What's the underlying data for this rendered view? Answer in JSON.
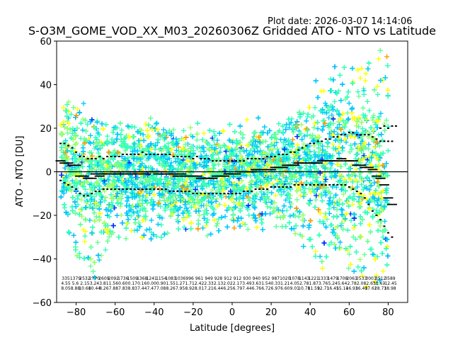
{
  "header": {
    "plot_date": "Plot date: 2026-03-07 14:14:06"
  },
  "chart_data": {
    "type": "scatter",
    "title": "S-O3M_GOME_VOD_XX_M03_20260306Z Gridded ATO - NTO vs Latitude",
    "xlabel": "Latitude [degrees]",
    "ylabel": "ATO - NTO [DU]",
    "xlim": [
      -90,
      90
    ],
    "ylim": [
      -60,
      60
    ],
    "xticks": [
      -80,
      -60,
      -40,
      -20,
      0,
      20,
      40,
      60,
      80
    ],
    "yticks": [
      -60,
      -40,
      -20,
      0,
      20,
      40,
      60
    ],
    "marker": "+",
    "point_colors": [
      "#00ccff",
      "#33ffbb",
      "#66ff99",
      "#ffff00",
      "#99ff66",
      "#0033ff",
      "#ff9900",
      "#00bbff"
    ],
    "zero_line": 0,
    "envelope": {
      "lat": [
        -88,
        -80,
        -70,
        -60,
        -50,
        -40,
        -30,
        -20,
        -10,
        0,
        10,
        20,
        30,
        40,
        50,
        60,
        70,
        78
      ],
      "upper": [
        30,
        32,
        22,
        24,
        22,
        20,
        22,
        20,
        20,
        18,
        18,
        20,
        26,
        36,
        40,
        52,
        56,
        56
      ],
      "lower": [
        -22,
        -38,
        -50,
        -30,
        -32,
        -32,
        -28,
        -28,
        -30,
        -26,
        -28,
        -28,
        -30,
        -38,
        -50,
        -45,
        -52,
        -52
      ]
    },
    "series": [
      {
        "name": "mean",
        "style": "black-thick-dash",
        "lat": [
          -88,
          -86,
          -84,
          -82,
          -80,
          -78,
          -76,
          -74,
          -72,
          -70,
          -68,
          -66,
          -64,
          -62,
          -60,
          -58,
          -56,
          -54,
          -52,
          -50,
          -48,
          -46,
          -44,
          -42,
          -40,
          -38,
          -36,
          -34,
          -32,
          -30,
          -28,
          -26,
          -24,
          -22,
          -20,
          -18,
          -16,
          -14,
          -12,
          -10,
          -8,
          -6,
          -4,
          -2,
          0,
          2,
          4,
          6,
          8,
          10,
          12,
          14,
          16,
          18,
          20,
          22,
          24,
          26,
          28,
          30,
          32,
          34,
          36,
          38,
          40,
          42,
          44,
          46,
          48,
          50,
          52,
          54,
          56,
          58,
          60,
          62,
          64,
          66,
          68,
          70,
          72,
          74,
          76,
          78,
          80,
          82
        ],
        "values": [
          5,
          4,
          4,
          3,
          3,
          -2,
          -2,
          -3,
          -3,
          -1,
          -2,
          -1,
          -1,
          -1,
          0,
          -1,
          -1,
          0,
          -1,
          0,
          -1,
          0,
          -1,
          0,
          0,
          -1,
          0,
          -1,
          -1,
          -1,
          -2,
          -1,
          -2,
          -2,
          -2,
          -2,
          -3,
          -3,
          -3,
          -3,
          -2,
          -2,
          -2,
          -1,
          -1,
          -1,
          0,
          0,
          0,
          0,
          1,
          1,
          1,
          1,
          1,
          2,
          2,
          2,
          3,
          3,
          3,
          4,
          4,
          4,
          4,
          4,
          4,
          5,
          5,
          5,
          5,
          5,
          6,
          5,
          5,
          5,
          3,
          3,
          2,
          2,
          1,
          -2,
          -3,
          -6,
          -12,
          -15
        ]
      },
      {
        "name": "upper",
        "style": "black-dotted",
        "lat": [
          -88,
          -86,
          -84,
          -82,
          -80,
          -78,
          -76,
          -74,
          -72,
          -70,
          -68,
          -66,
          -64,
          -62,
          -60,
          -58,
          -56,
          -54,
          -52,
          -50,
          -48,
          -46,
          -44,
          -42,
          -40,
          -38,
          -36,
          -34,
          -32,
          -30,
          -28,
          -26,
          -24,
          -22,
          -20,
          -18,
          -16,
          -14,
          -12,
          -10,
          -8,
          -6,
          -4,
          -2,
          0,
          2,
          4,
          6,
          8,
          10,
          12,
          14,
          16,
          18,
          20,
          22,
          24,
          26,
          28,
          30,
          32,
          34,
          36,
          38,
          40,
          42,
          44,
          46,
          48,
          50,
          52,
          54,
          56,
          58,
          60,
          62,
          64,
          66,
          68,
          70,
          72,
          74,
          76,
          78,
          80,
          82
        ],
        "values": [
          13,
          13,
          12,
          11,
          9,
          7,
          7,
          6,
          6,
          6,
          7,
          6,
          7,
          7,
          7,
          7,
          8,
          8,
          8,
          8,
          8,
          9,
          8,
          8,
          8,
          8,
          8,
          8,
          8,
          7,
          7,
          7,
          7,
          7,
          6,
          7,
          6,
          6,
          6,
          5,
          5,
          5,
          5,
          5,
          5,
          5,
          5,
          5,
          6,
          6,
          6,
          6,
          6,
          7,
          7,
          7,
          8,
          8,
          8,
          9,
          9,
          10,
          11,
          12,
          13,
          13,
          14,
          14,
          15,
          15,
          16,
          16,
          17,
          17,
          18,
          18,
          17,
          17,
          17,
          17,
          16,
          15,
          14,
          14,
          14,
          14
        ]
      },
      {
        "name": "lower",
        "style": "black-dotted",
        "lat": [
          -88,
          -86,
          -84,
          -82,
          -80,
          -78,
          -76,
          -74,
          -72,
          -70,
          -68,
          -66,
          -64,
          -62,
          -60,
          -58,
          -56,
          -54,
          -52,
          -50,
          -48,
          -46,
          -44,
          -42,
          -40,
          -38,
          -36,
          -34,
          -32,
          -30,
          -28,
          -26,
          -24,
          -22,
          -20,
          -18,
          -16,
          -14,
          -12,
          -10,
          -8,
          -6,
          -4,
          -2,
          0,
          2,
          4,
          6,
          8,
          10,
          12,
          14,
          16,
          18,
          20,
          22,
          24,
          26,
          28,
          30,
          32,
          34,
          36,
          38,
          40,
          42,
          44,
          46,
          48,
          50,
          52,
          54,
          56,
          58,
          60,
          62,
          64,
          66,
          68,
          70,
          72,
          74,
          76,
          78,
          80,
          82
        ],
        "values": [
          -4,
          -5,
          -6,
          -7,
          -8,
          -10,
          -11,
          -11,
          -10,
          -9,
          -9,
          -8,
          -8,
          -8,
          -8,
          -8,
          -8,
          -8,
          -8,
          -8,
          -8,
          -8,
          -8,
          -8,
          -8,
          -8,
          -8,
          -8,
          -9,
          -9,
          -9,
          -9,
          -9,
          -9,
          -10,
          -10,
          -10,
          -10,
          -10,
          -10,
          -10,
          -10,
          -10,
          -10,
          -10,
          -10,
          -10,
          -9,
          -9,
          -9,
          -8,
          -8,
          -8,
          -8,
          -7,
          -7,
          -7,
          -7,
          -7,
          -7,
          -6,
          -6,
          -6,
          -6,
          -6,
          -6,
          -6,
          -6,
          -6,
          -6,
          -6,
          -6,
          -6,
          -6,
          -7,
          -8,
          -9,
          -10,
          -12,
          -15,
          -18,
          -20,
          -22,
          -25,
          -28,
          -30
        ]
      },
      {
        "name": "upper-right-extra",
        "style": "black-dotted",
        "lat": [
          76,
          78,
          80,
          82,
          84
        ],
        "values": [
          20,
          21,
          20,
          21,
          21
        ]
      }
    ],
    "stats_rows": [
      [
        "335",
        "1379",
        "2532",
        "2770",
        "2609",
        "2092",
        "1736",
        "1509",
        "1368",
        "1241",
        "1154",
        "1083",
        "1036",
        "996",
        "961",
        "949",
        "928",
        "912",
        "912",
        "930",
        "940",
        "952",
        "987",
        "1020",
        "1078",
        "1143",
        "1221",
        "1333",
        "1479",
        "1708",
        "2063",
        "2533",
        "3003",
        "3512",
        "3589"
      ],
      [
        "4.55",
        "5.6",
        "2.15",
        "3.24",
        "3.81",
        "1.56",
        "0.60",
        "0.17",
        "0.16",
        "0.00",
        "0.90",
        "1.55",
        "1.27",
        "1.71",
        "2.42",
        "2.33",
        "2.13",
        "2.02",
        "2.17",
        "3.49",
        "3.63",
        "1.54",
        "0.33",
        "1.21",
        "4.05",
        "2.78",
        "1.87",
        "3.76",
        "5.24",
        "5.64",
        "2.78",
        "2.08",
        "2.63",
        "1.63",
        "-12.45"
      ],
      [
        "8.05",
        "8.88",
        "10.68",
        "10.44",
        "8.26",
        "7.88",
        "7.83",
        "8.83",
        "7.44",
        "7.47",
        "7.08",
        "8.26",
        "7.95",
        "8.92",
        "8.01",
        "7.21",
        "6.44",
        "6.25",
        "6.79",
        "7.44",
        "6.76",
        "6.72",
        "6.97",
        "6.60",
        "9.01",
        "10.78",
        "11.59",
        "12.71",
        "16.45",
        "15.14",
        "16.93",
        "16.40",
        "17.62",
        "18.73",
        "18.98"
      ]
    ],
    "point_count": 8000,
    "legend": "none"
  }
}
